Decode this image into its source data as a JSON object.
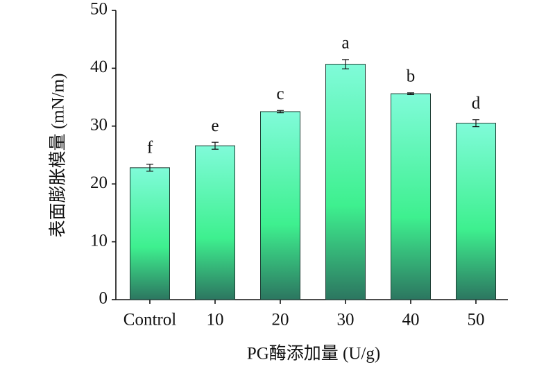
{
  "chart_data": {
    "type": "bar",
    "xlabel": "PG酶添加量 (U/g)",
    "ylabel": "表面膨胀模量 (mN/m)",
    "categories": [
      "Control",
      "10",
      "20",
      "30",
      "40",
      "50"
    ],
    "values": [
      22.8,
      26.6,
      32.5,
      40.7,
      35.6,
      30.5
    ],
    "errors": [
      0.6,
      0.6,
      0.2,
      0.8,
      0.15,
      0.6
    ],
    "significance_labels": [
      "f",
      "e",
      "c",
      "a",
      "b",
      "d"
    ],
    "colors": [
      "#80fbd9",
      "#3ef08f",
      "#2c7660"
    ],
    "ylim": [
      0,
      50
    ],
    "yticks": [
      0,
      10,
      20,
      30,
      40,
      50
    ]
  }
}
